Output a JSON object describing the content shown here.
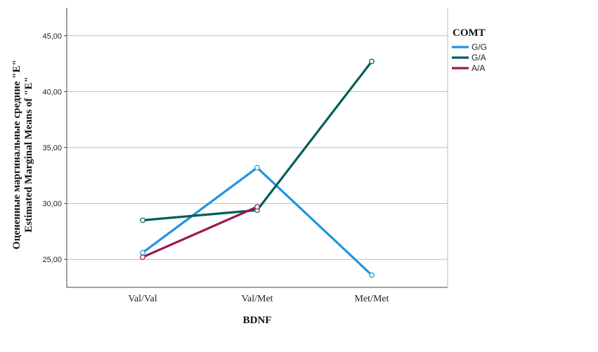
{
  "chart_data": {
    "type": "line",
    "xlabel": "BDNF",
    "ylabel_lines": [
      "Оцененные маргинальные средние \"E\"",
      "Estimated Marginal Means of \"E\""
    ],
    "categories": [
      "Val/Val",
      "Val/Met",
      "Met/Met"
    ],
    "yticks": [
      "25,00",
      "30,00",
      "35,00",
      "40,00",
      "45,00"
    ],
    "ytick_values": [
      25,
      30,
      35,
      40,
      45
    ],
    "ylim": [
      22.5,
      47.5
    ],
    "grid": true,
    "legend": {
      "title": "COMT",
      "placement": "right-top"
    },
    "series": [
      {
        "name": "G/G",
        "color": "#1f93e0",
        "values": [
          25.6,
          33.2,
          23.6
        ]
      },
      {
        "name": "G/A",
        "color": "#005e5a",
        "values": [
          28.5,
          29.4,
          42.7
        ]
      },
      {
        "name": "A/A",
        "color": "#9c1a52",
        "values": [
          25.2,
          29.7,
          null
        ]
      }
    ]
  }
}
